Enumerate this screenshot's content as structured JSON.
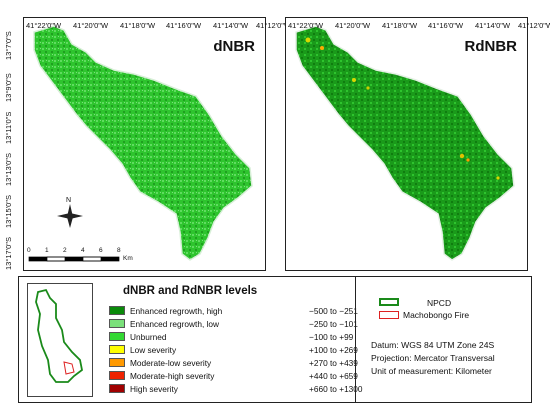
{
  "maps": {
    "left": {
      "title": "dNBR",
      "lon_ticks": [
        "41°22'0\"W",
        "41°20'0\"W",
        "41°18'0\"W",
        "41°16'0\"W",
        "41°14'0\"W",
        "41°12'0\"W"
      ],
      "lat_ticks": [
        "13°7'0\"S",
        "13°9'0\"S",
        "13°11'0\"S",
        "13°13'0\"S",
        "13°15'0\"S",
        "13°17'0\"S"
      ],
      "north_label": "N",
      "scale_labels": [
        "0",
        "1",
        "2",
        "4",
        "6",
        "8"
      ],
      "scale_unit": "Km"
    },
    "right": {
      "title": "RdNBR",
      "lon_ticks": [
        "41°22'0\"W",
        "41°20'0\"W",
        "41°18'0\"W",
        "41°16'0\"W",
        "41°14'0\"W",
        "41°12'0\"W"
      ]
    }
  },
  "legend": {
    "title": "dNBR and RdNBR levels",
    "classes": [
      {
        "label": "Enhanced regrowth, high",
        "range": "−500 to −251",
        "color": "#0a8a0a"
      },
      {
        "label": "Enhanced regrowth, low",
        "range": "−250 to −101",
        "color": "#7ae07a"
      },
      {
        "label": "Unburned",
        "range": "−100 to +99",
        "color": "#33d833"
      },
      {
        "label": "Low severity",
        "range": "+100 to +269",
        "color": "#ffff00"
      },
      {
        "label": "Moderate-low severity",
        "range": "+270 to +439",
        "color": "#ff9900"
      },
      {
        "label": "Moderate-high severity",
        "range": "+440 to +659",
        "color": "#ee2200"
      },
      {
        "label": "High severity",
        "range": "+660 to +1300",
        "color": "#a00000"
      }
    ],
    "boundaries": [
      {
        "label": "NPCD",
        "color": "#1a8a1a"
      },
      {
        "label": "Machobongo Fire",
        "color": "#dd2222"
      }
    ],
    "info": [
      "Datum: WGS 84 UTM Zone 24S",
      "Projection: Mercator Transversal",
      "Unit of measurement: Kilometer"
    ]
  }
}
